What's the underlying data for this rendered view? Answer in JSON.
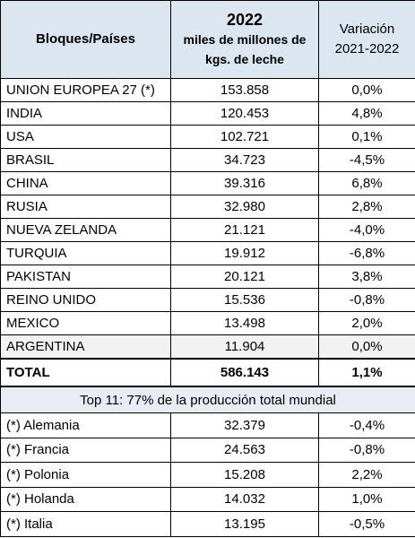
{
  "header": {
    "country": "Bloques/Países",
    "production": [
      "2022",
      "miles de millones de",
      "kgs. de leche"
    ],
    "variation": [
      "Variación",
      "2021-2022"
    ]
  },
  "rows": [
    [
      "UNION EUROPEA 27 (*)",
      "153.858",
      "0,0%"
    ],
    [
      "INDIA",
      "120.453",
      "4,8%"
    ],
    [
      "USA",
      "102.721",
      "0,1%"
    ],
    [
      "BRASIL",
      "34.723",
      "-4,5%"
    ],
    [
      "CHINA",
      "39.316",
      "6,8%"
    ],
    [
      "RUSIA",
      "32.980",
      "2,8%"
    ],
    [
      "NUEVA ZELANDA",
      "21.121",
      "-4,0%"
    ],
    [
      "TURQUIA",
      "19.912",
      "-6,8%"
    ],
    [
      "PAKISTAN",
      "20.121",
      "3,8%"
    ],
    [
      "REINO UNIDO",
      "15.536",
      "-0,8%"
    ],
    [
      "MEXICO",
      "13.498",
      "2,0%"
    ],
    [
      "ARGENTINA",
      "11.904",
      "0,0%"
    ]
  ],
  "total": [
    "TOTAL",
    "586.143",
    "1,1%"
  ],
  "note": "Top 11: 77% de la producción total mundial",
  "eu_rows": [
    [
      "(*) Alemania",
      "32.379",
      "-0,4%"
    ],
    [
      "(*) Francia",
      "24.563",
      "-0,8%"
    ],
    [
      "(*) Polonia",
      "15.208",
      "2,2%"
    ],
    [
      "(*) Holanda",
      "14.032",
      "1,0%"
    ],
    [
      "(*) Italia",
      "13.195",
      "-0,5%"
    ]
  ]
}
